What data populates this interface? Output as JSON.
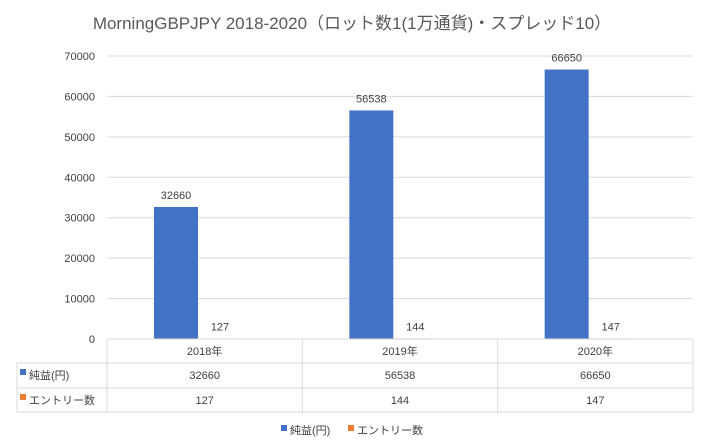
{
  "chart_data": {
    "type": "bar",
    "title": "MorningGBPJPY 2018-2020（ロット数1(1万通貨)・スプレッド10）",
    "categories": [
      "2018年",
      "2019年",
      "2020年"
    ],
    "series": [
      {
        "name": "純益(円)",
        "values": [
          32660,
          56538,
          66650
        ],
        "color": "#4472C4"
      },
      {
        "name": "エントリー数",
        "values": [
          127,
          144,
          147
        ],
        "color": "#ED7D31"
      }
    ],
    "ylim": [
      0,
      70000
    ],
    "yticks": [
      0,
      10000,
      20000,
      30000,
      40000,
      50000,
      60000,
      70000
    ],
    "grid": true,
    "data_table": true,
    "legend": "bottom",
    "xlabel": "",
    "ylabel": ""
  }
}
